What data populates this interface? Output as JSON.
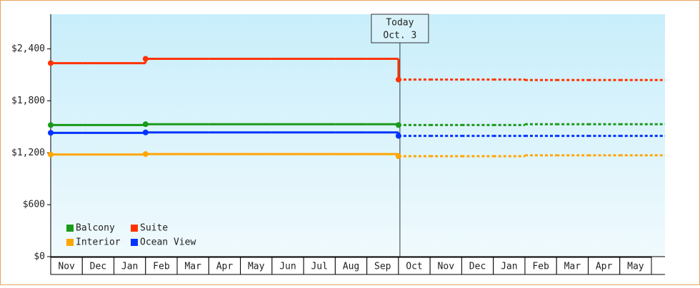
{
  "chart_data": {
    "type": "step-line",
    "annotation": [
      "Today",
      "Oct. 3"
    ],
    "categories": [
      "Nov",
      "Dec",
      "Jan",
      "Feb",
      "Mar",
      "Apr",
      "May",
      "Jun",
      "Jul",
      "Aug",
      "Sep",
      "Oct",
      "Nov",
      "Dec",
      "Jan",
      "Feb",
      "Mar",
      "Apr",
      "May"
    ],
    "ylim": [
      0,
      2800
    ],
    "yticks": [
      {
        "value": 0,
        "label": "$0"
      },
      {
        "value": 600,
        "label": "$600"
      },
      {
        "value": 1200,
        "label": "$1,200"
      },
      {
        "value": 1800,
        "label": "$1,800"
      },
      {
        "value": 2400,
        "label": "$2,400"
      }
    ],
    "series": [
      {
        "name": "Balcony",
        "color": "#1a9a1a",
        "values": [
          1520,
          1520,
          1520,
          1530,
          1530,
          1530,
          1530,
          1530,
          1530,
          1530,
          1530,
          1520,
          null,
          null,
          null,
          null,
          null,
          null,
          null
        ],
        "forecast": [
          null,
          null,
          null,
          null,
          null,
          null,
          null,
          null,
          null,
          null,
          null,
          1520,
          1520,
          1520,
          1520,
          1530,
          1530,
          1530,
          1530
        ]
      },
      {
        "name": "Suite",
        "color": "#ff3300",
        "values": [
          2235,
          2235,
          2235,
          2285,
          2285,
          2285,
          2285,
          2285,
          2285,
          2285,
          2285,
          2045,
          null,
          null,
          null,
          null,
          null,
          null,
          null
        ],
        "forecast": [
          null,
          null,
          null,
          null,
          null,
          null,
          null,
          null,
          null,
          null,
          null,
          2045,
          2045,
          2045,
          2045,
          2040,
          2040,
          2040,
          2040
        ]
      },
      {
        "name": "Interior",
        "color": "#ffa500",
        "values": [
          1180,
          1180,
          1180,
          1185,
          1185,
          1185,
          1185,
          1185,
          1185,
          1185,
          1185,
          1160,
          null,
          null,
          null,
          null,
          null,
          null,
          null
        ],
        "forecast": [
          null,
          null,
          null,
          null,
          null,
          null,
          null,
          null,
          null,
          null,
          null,
          1160,
          1160,
          1160,
          1160,
          1170,
          1170,
          1170,
          1170
        ]
      },
      {
        "name": "Ocean View",
        "color": "#0033ff",
        "values": [
          1430,
          1430,
          1430,
          1435,
          1435,
          1435,
          1435,
          1435,
          1435,
          1435,
          1435,
          1395,
          null,
          null,
          null,
          null,
          null,
          null,
          null
        ],
        "forecast": [
          null,
          null,
          null,
          null,
          null,
          null,
          null,
          null,
          null,
          null,
          null,
          1395,
          1395,
          1395,
          1395,
          1395,
          1395,
          1395,
          1395
        ]
      }
    ]
  }
}
